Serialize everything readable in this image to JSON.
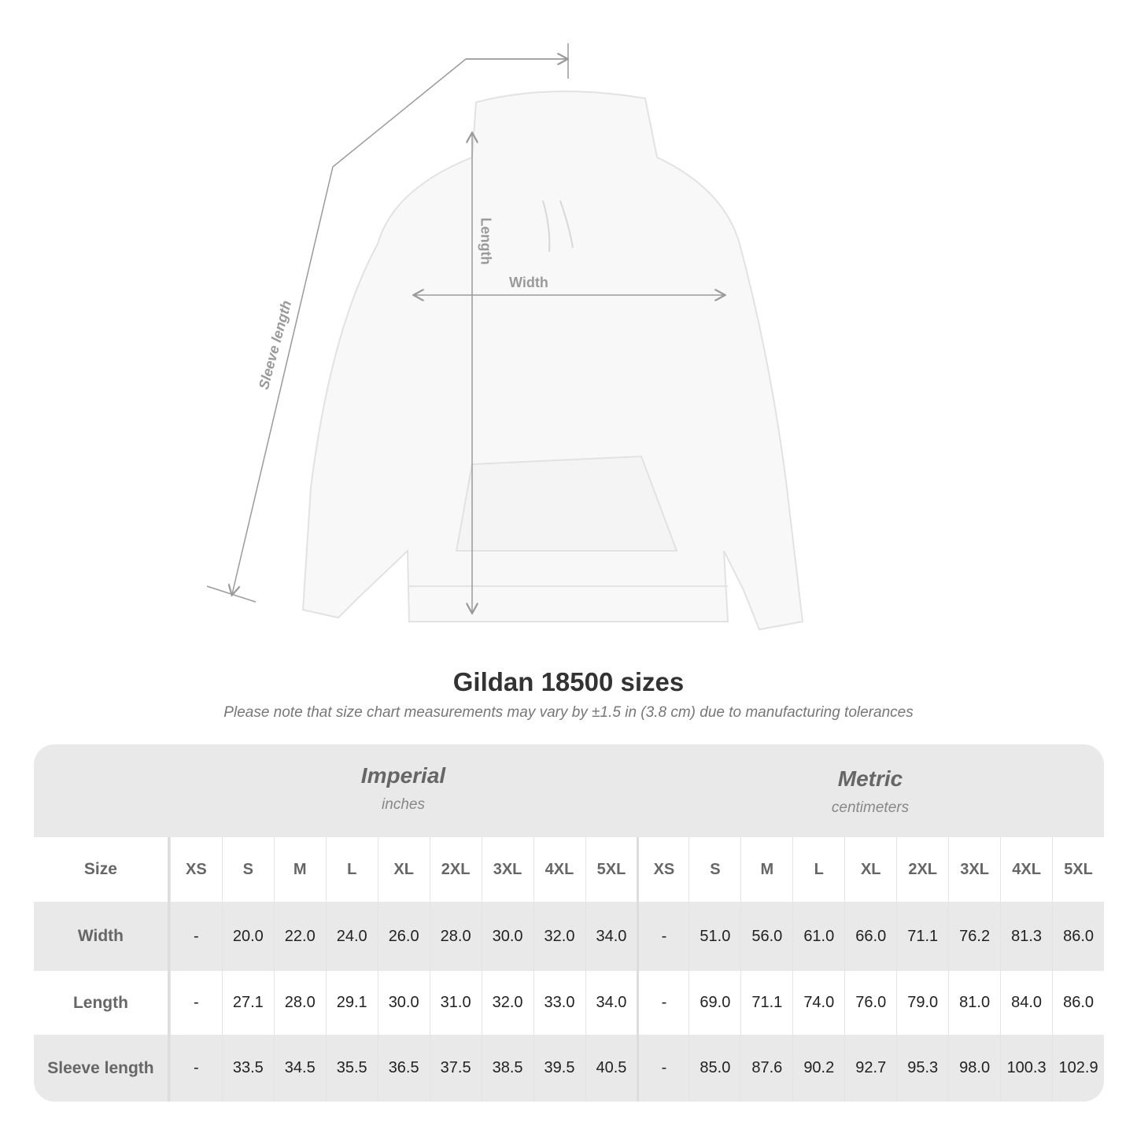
{
  "diagram_labels": {
    "sleeve": "Sleeve length",
    "length": "Length",
    "width": "Width"
  },
  "title": "Gildan 18500 sizes",
  "note": "Please note that size chart measurements may vary by ±1.5 in (3.8 cm) due to manufacturing tolerances",
  "imperial": {
    "name": "Imperial",
    "unit": "inches"
  },
  "metric": {
    "name": "Metric",
    "unit": "centimeters"
  },
  "size_label": "Size",
  "sizes": [
    "XS",
    "S",
    "M",
    "L",
    "XL",
    "2XL",
    "3XL",
    "4XL",
    "5XL"
  ],
  "rows": [
    {
      "label": "Width",
      "imperial": [
        "-",
        "20.0",
        "22.0",
        "24.0",
        "26.0",
        "28.0",
        "30.0",
        "32.0",
        "34.0"
      ],
      "metric": [
        "-",
        "51.0",
        "56.0",
        "61.0",
        "66.0",
        "71.1",
        "76.2",
        "81.3",
        "86.0"
      ]
    },
    {
      "label": "Length",
      "imperial": [
        "-",
        "27.1",
        "28.0",
        "29.1",
        "30.0",
        "31.0",
        "32.0",
        "33.0",
        "34.0"
      ],
      "metric": [
        "-",
        "69.0",
        "71.1",
        "74.0",
        "76.0",
        "79.0",
        "81.0",
        "84.0",
        "86.0"
      ]
    },
    {
      "label": "Sleeve length",
      "imperial": [
        "-",
        "33.5",
        "34.5",
        "35.5",
        "36.5",
        "37.5",
        "38.5",
        "39.5",
        "40.5"
      ],
      "metric": [
        "-",
        "85.0",
        "87.6",
        "90.2",
        "92.7",
        "95.3",
        "98.0",
        "100.3",
        "102.9"
      ]
    }
  ],
  "colors": {
    "band": "#e9e9e9",
    "measure_line": "#9a9a9a",
    "header_text": "#666666"
  }
}
